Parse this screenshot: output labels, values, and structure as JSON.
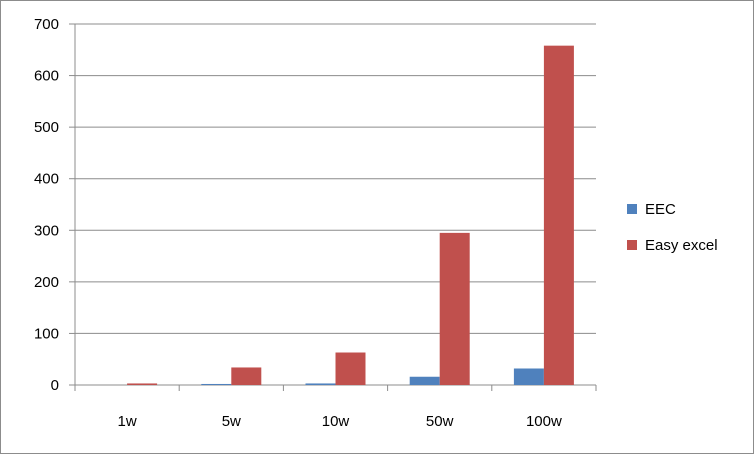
{
  "chart_data": {
    "type": "bar",
    "categories": [
      "1w",
      "5w",
      "10w",
      "50w",
      "100w"
    ],
    "series": [
      {
        "name": "EEC",
        "values": [
          0,
          2,
          3,
          16,
          32
        ],
        "color": "#4f81bd"
      },
      {
        "name": "Easy excel",
        "values": [
          3,
          34,
          63,
          295,
          658
        ],
        "color": "#c0504d"
      }
    ],
    "ylim": [
      0,
      700
    ],
    "yticks": [
      0,
      100,
      200,
      300,
      400,
      500,
      600,
      700
    ],
    "grid": true,
    "legend": "right"
  }
}
